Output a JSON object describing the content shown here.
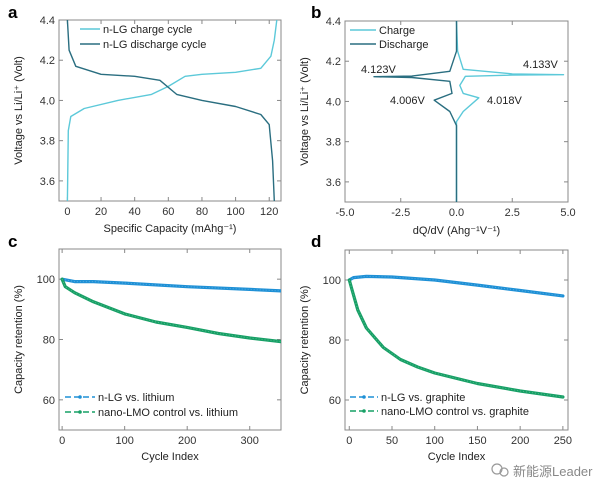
{
  "chart_data": [
    {
      "panel": "a",
      "type": "line",
      "xlabel": "Specific Capacity (mAhg⁻¹)",
      "ylabel": "Voltage vs Li/Li⁺ (Volt)",
      "xlim": [
        -5,
        127
      ],
      "ylim": [
        3.5,
        4.4
      ],
      "xticks": [
        0,
        20,
        40,
        60,
        80,
        100,
        120
      ],
      "yticks": [
        3.6,
        3.8,
        4.0,
        4.2,
        4.4
      ],
      "ytick_labels": [
        "3.6",
        "3.8",
        "4.0",
        "4.2",
        "4.4"
      ],
      "legend": "top-left",
      "series": [
        {
          "name": "n-LG charge cycle",
          "color": "#5cc9d9",
          "x": [
            0,
            0.5,
            2,
            10,
            30,
            50,
            60,
            70,
            80,
            100,
            115,
            121,
            123,
            124.5
          ],
          "y": [
            3.5,
            3.85,
            3.92,
            3.96,
            4.0,
            4.03,
            4.07,
            4.12,
            4.13,
            4.14,
            4.16,
            4.22,
            4.3,
            4.4
          ]
        },
        {
          "name": "n-LG discharge cycle",
          "color": "#2a6e80",
          "x": [
            0,
            1,
            5,
            20,
            40,
            55,
            65,
            80,
            100,
            115,
            120,
            122,
            123
          ],
          "y": [
            4.4,
            4.25,
            4.17,
            4.13,
            4.12,
            4.1,
            4.03,
            4.0,
            3.97,
            3.93,
            3.88,
            3.7,
            3.5
          ]
        }
      ]
    },
    {
      "panel": "b",
      "type": "line",
      "xlabel": "dQ/dV (Ahg⁻¹V⁻¹)",
      "ylabel": "Voltage vs Li/Li⁺ (Volt)",
      "xlim": [
        -5,
        5
      ],
      "ylim": [
        3.5,
        4.4
      ],
      "xticks": [
        -5,
        -2.5,
        0,
        2.5,
        5
      ],
      "xtick_labels": [
        "-5.0",
        "-2.5",
        "0.0",
        "2.5",
        "5.0"
      ],
      "yticks": [
        3.6,
        3.8,
        4.0,
        4.2,
        4.4
      ],
      "ytick_labels": [
        "3.6",
        "3.8",
        "4.0",
        "4.2",
        "4.4"
      ],
      "legend": "top-left",
      "annotations": [
        "4.123V",
        "4.133V",
        "4.006V",
        "4.018V"
      ],
      "series": [
        {
          "name": "Charge",
          "color": "#5cc9d9",
          "x": [
            0,
            0,
            0.3,
            1.0,
            0.3,
            0.15,
            0.4,
            2.5,
            4.8,
            2.5,
            0.3,
            0.05,
            0
          ],
          "y": [
            3.5,
            3.9,
            3.95,
            4.018,
            4.04,
            4.08,
            4.125,
            4.131,
            4.133,
            4.137,
            4.16,
            4.25,
            4.4
          ]
        },
        {
          "name": "Discharge",
          "color": "#2a6e80",
          "x": [
            0,
            0,
            -0.3,
            -2,
            -3.7,
            -2,
            -0.3,
            -0.2,
            -1.0,
            -0.3,
            0,
            0
          ],
          "y": [
            4.4,
            4.25,
            4.15,
            4.126,
            4.123,
            4.119,
            4.1,
            4.04,
            4.006,
            3.95,
            3.88,
            3.5
          ]
        }
      ]
    },
    {
      "panel": "c",
      "type": "scatter",
      "xlabel": "Cycle Index",
      "ylabel": "Capacity retention (%)",
      "xlim": [
        -5,
        350
      ],
      "ylim": [
        50,
        110
      ],
      "xticks": [
        0,
        100,
        200,
        300
      ],
      "yticks": [
        60,
        80,
        100
      ],
      "legend": "bottom-left",
      "series": [
        {
          "name": "n-LG vs. lithium",
          "color": "#1e90d6",
          "x": [
            0,
            20,
            50,
            100,
            200,
            300,
            350
          ],
          "y": [
            100,
            99.2,
            99.2,
            98.7,
            97.5,
            96.6,
            96.1
          ]
        },
        {
          "name": "nano-LMO control vs. lithium",
          "color": "#17a066",
          "x": [
            0,
            5,
            20,
            50,
            100,
            150,
            200,
            250,
            300,
            350
          ],
          "y": [
            100,
            97.5,
            95.5,
            92.5,
            88.5,
            85.8,
            84,
            82,
            80.5,
            79.3
          ]
        }
      ]
    },
    {
      "panel": "d",
      "type": "scatter",
      "xlabel": "Cycle Index",
      "ylabel": "Capacity retention (%)",
      "xlim": [
        -5,
        256
      ],
      "ylim": [
        50,
        110
      ],
      "xticks": [
        0,
        50,
        100,
        150,
        200,
        250
      ],
      "yticks": [
        60,
        80,
        100
      ],
      "legend": "bottom-left",
      "series": [
        {
          "name": "n-LG vs. graphite",
          "color": "#1e90d6",
          "x": [
            0,
            5,
            20,
            50,
            100,
            150,
            200,
            250
          ],
          "y": [
            100,
            100.8,
            101.2,
            101,
            100,
            98.3,
            96.5,
            94.7
          ]
        },
        {
          "name": "nano-LMO control vs. graphite",
          "color": "#17a066",
          "x": [
            0,
            3,
            10,
            20,
            40,
            60,
            80,
            100,
            150,
            200,
            250
          ],
          "y": [
            100,
            97,
            90,
            84,
            77.5,
            73.5,
            71,
            69,
            65.5,
            63,
            61
          ]
        }
      ]
    }
  ],
  "watermark": "新能源Leader"
}
